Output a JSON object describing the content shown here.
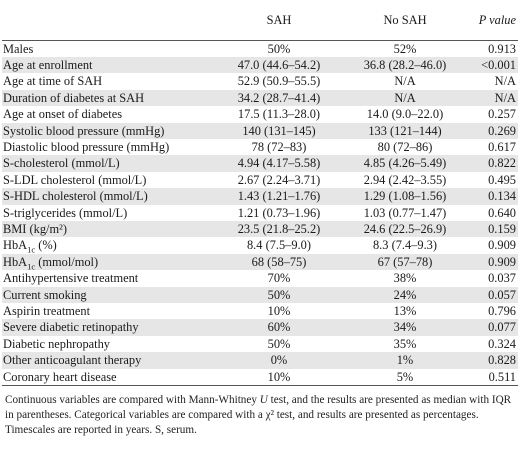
{
  "header": {
    "col_sah": "SAH",
    "col_nosah": "No SAH",
    "col_p": "P value"
  },
  "rows": [
    {
      "label": "Males",
      "sah": "50%",
      "nosah": "52%",
      "p": "0.913",
      "shaded": false
    },
    {
      "label": "Age at enrollment",
      "sah": "47.0 (44.6–54.2)",
      "nosah": "36.8 (28.2–46.0)",
      "p": "<0.001",
      "shaded": true
    },
    {
      "label": "Age at time of SAH",
      "sah": "52.9 (50.9–55.5)",
      "nosah": "N/A",
      "p": "N/A",
      "shaded": false
    },
    {
      "label": "Duration of diabetes at SAH",
      "sah": "34.2 (28.7–41.4)",
      "nosah": "N/A",
      "p": "N/A",
      "shaded": true
    },
    {
      "label": "Age at onset of diabetes",
      "sah": "17.5 (11.3–28.0)",
      "nosah": "14.0 (9.0–22.0)",
      "p": "0.257",
      "shaded": false
    },
    {
      "label": "Systolic blood pressure (mmHg)",
      "sah": "140 (131–145)",
      "nosah": "133 (121–144)",
      "p": "0.269",
      "shaded": true
    },
    {
      "label": "Diastolic blood pressure (mmHg)",
      "sah": "78 (72–83)",
      "nosah": "80 (72–86)",
      "p": "0.617",
      "shaded": false
    },
    {
      "label": "S-cholesterol (mmol/L)",
      "sah": "4.94 (4.17–5.58)",
      "nosah": "4.85 (4.26–5.49)",
      "p": "0.822",
      "shaded": true
    },
    {
      "label": "S-LDL cholesterol (mmol/L)",
      "sah": "2.67 (2.24–3.71)",
      "nosah": "2.94 (2.42–3.55)",
      "p": "0.495",
      "shaded": false
    },
    {
      "label": "S-HDL cholesterol (mmol/L)",
      "sah": "1.43 (1.21–1.76)",
      "nosah": "1.29 (1.08–1.56)",
      "p": "0.134",
      "shaded": true
    },
    {
      "label": "S-triglycerides (mmol/L)",
      "sah": "1.21 (0.73–1.96)",
      "nosah": "1.03 (0.77–1.47)",
      "p": "0.640",
      "shaded": false
    },
    {
      "label": "BMI (kg/m²)",
      "sah": "23.5 (21.8–25.2)",
      "nosah": "24.6 (22.5–26.9)",
      "p": "0.159",
      "shaded": true
    },
    {
      "label": "HbA1c (%)",
      "sah": "8.4 (7.5–9.0)",
      "nosah": "8.3 (7.4–9.3)",
      "p": "0.909",
      "shaded": false
    },
    {
      "label": "HbA1c (mmol/mol)",
      "sah": "68 (58–75)",
      "nosah": "67 (57–78)",
      "p": "0.909",
      "shaded": true
    },
    {
      "label": "Antihypertensive treatment",
      "sah": "70%",
      "nosah": "38%",
      "p": "0.037",
      "shaded": false
    },
    {
      "label": "Current smoking",
      "sah": "50%",
      "nosah": "24%",
      "p": "0.057",
      "shaded": true
    },
    {
      "label": "Aspirin treatment",
      "sah": "10%",
      "nosah": "13%",
      "p": "0.796",
      "shaded": false
    },
    {
      "label": "Severe diabetic retinopathy",
      "sah": "60%",
      "nosah": "34%",
      "p": "0.077",
      "shaded": true
    },
    {
      "label": "Diabetic nephropathy",
      "sah": "50%",
      "nosah": "35%",
      "p": "0.324",
      "shaded": false
    },
    {
      "label": "Other anticoagulant therapy",
      "sah": "0%",
      "nosah": "1%",
      "p": "0.828",
      "shaded": true
    },
    {
      "label": "Coronary heart disease",
      "sah": "10%",
      "nosah": "5%",
      "p": "0.511",
      "shaded": false
    }
  ],
  "footnote": "Continuous variables are compared with Mann-Whitney U test, and the results are presented as median with IQR in parentheses. Categorical variables are compared with a χ² test, and results are presented as percentages. Timescales are reported in years. S, serum."
}
